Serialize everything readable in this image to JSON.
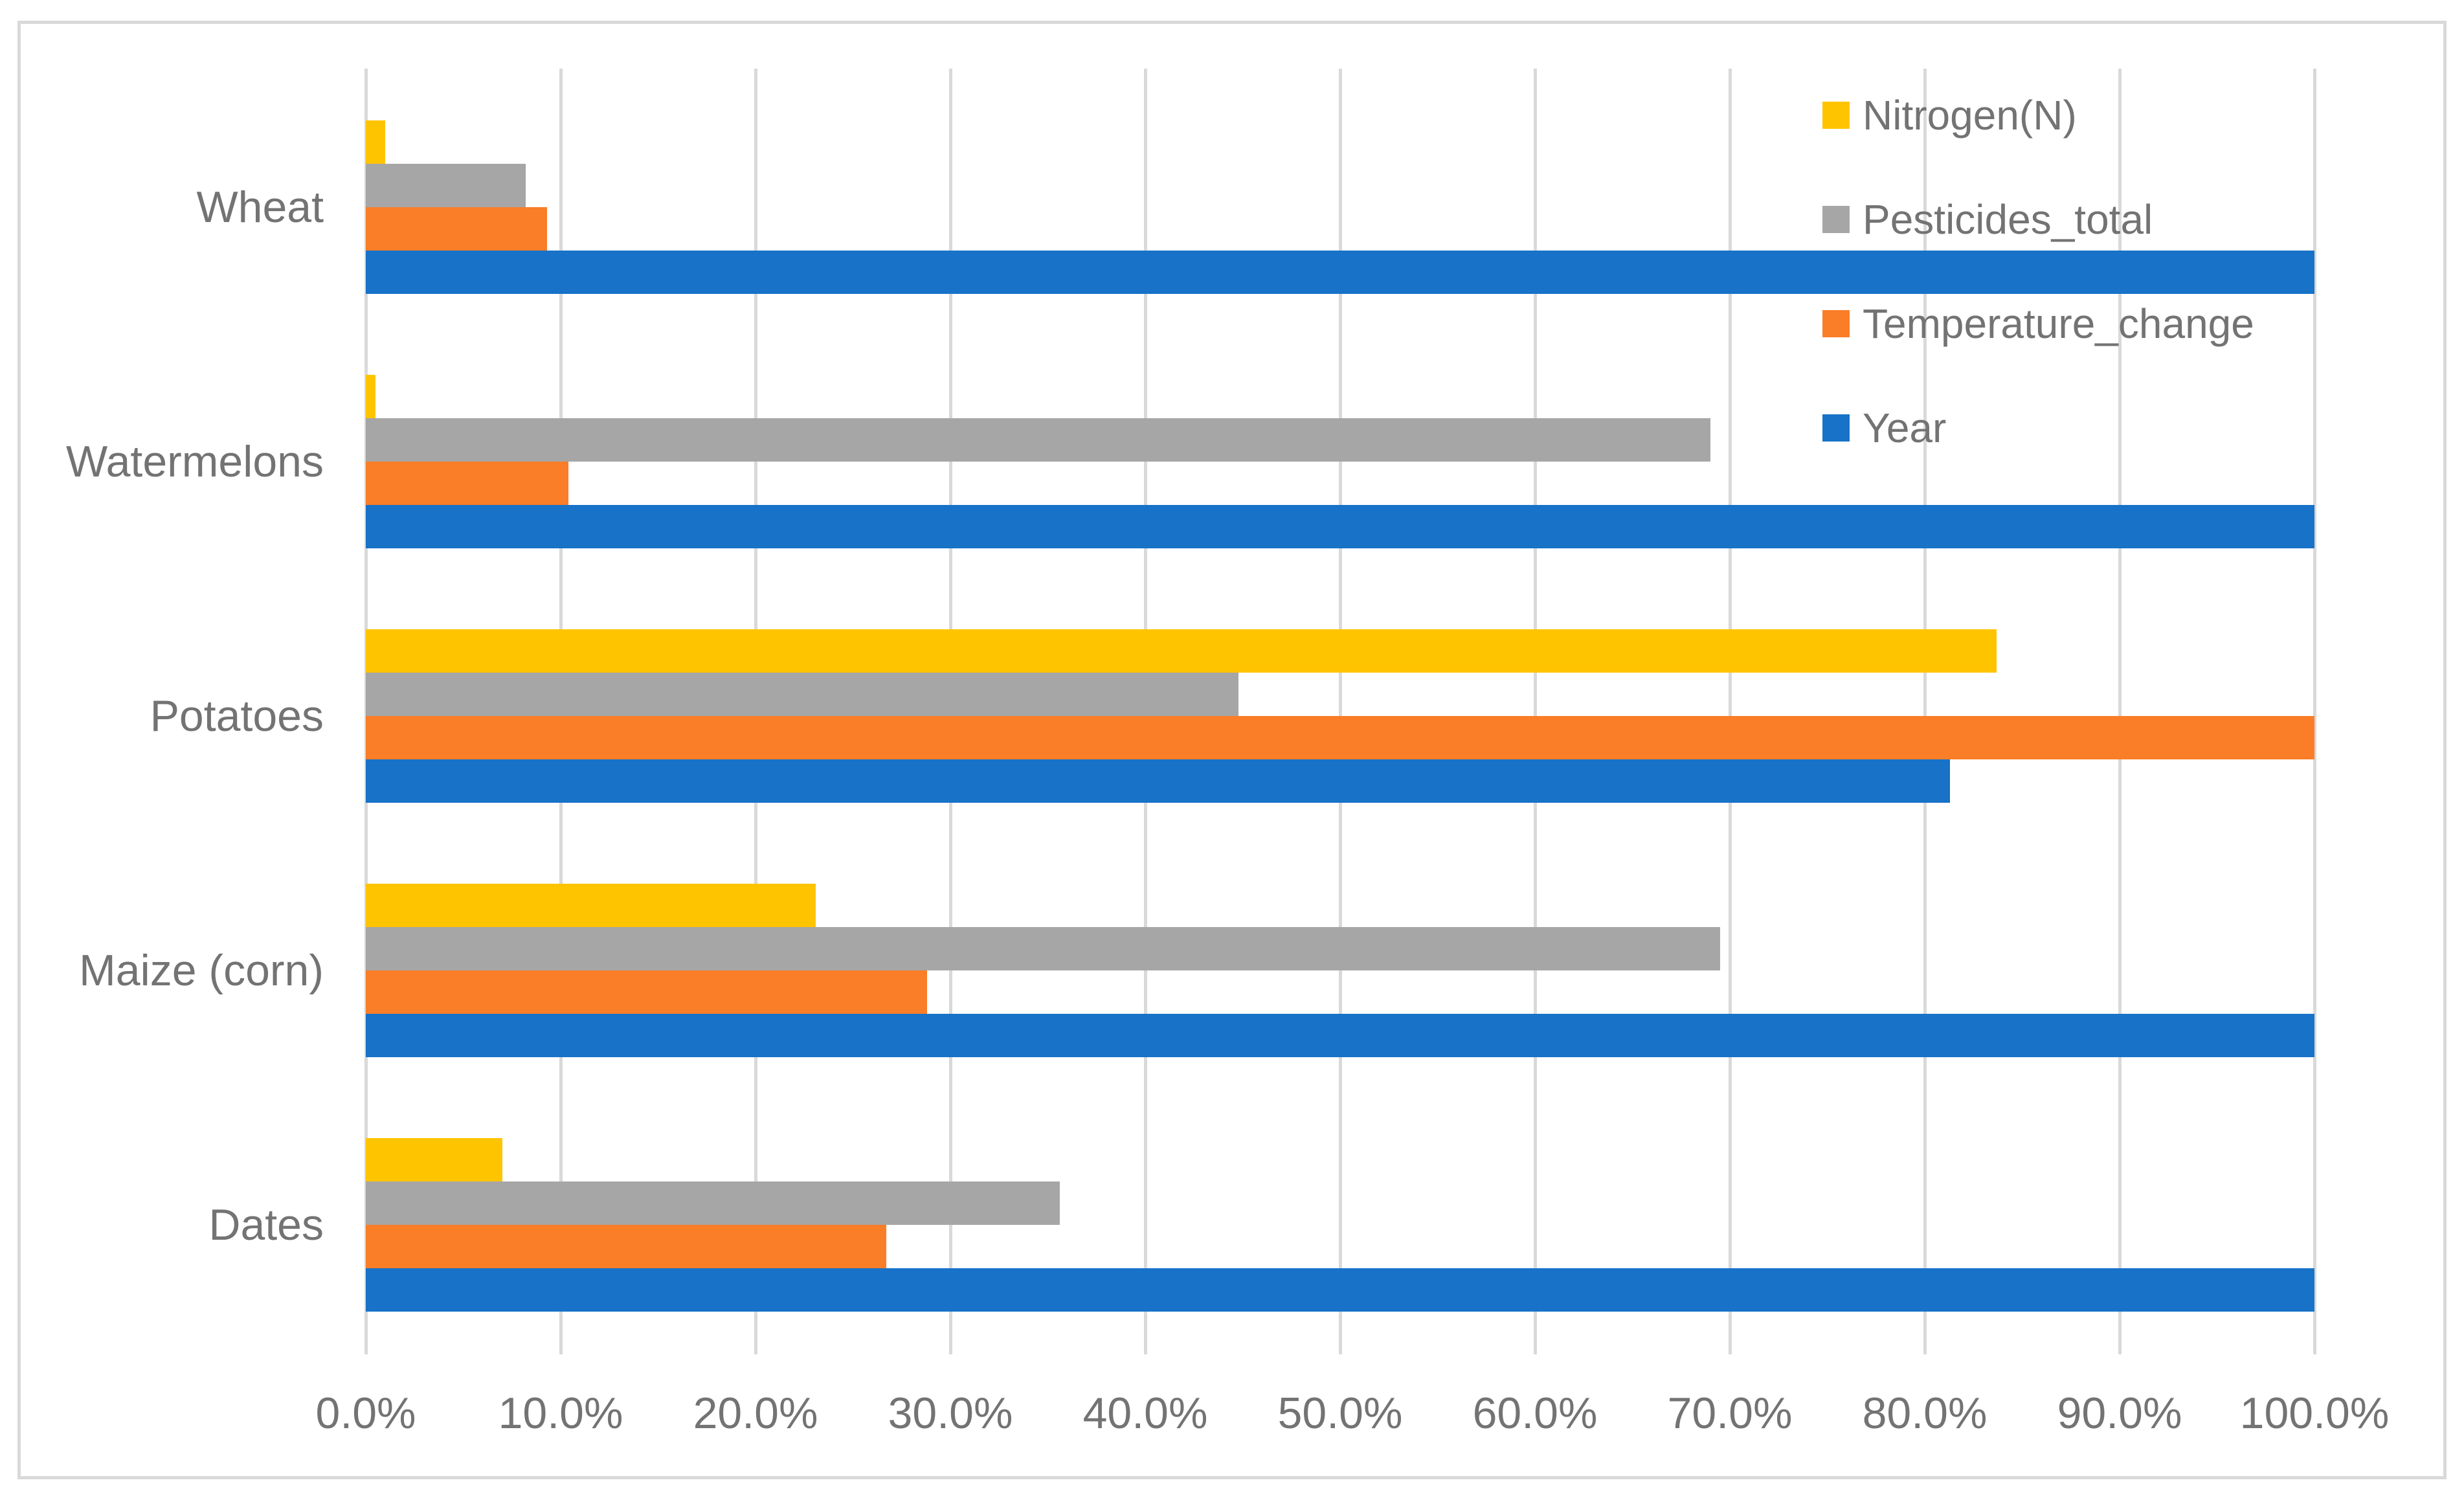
{
  "chart_data": {
    "type": "bar",
    "orientation": "horizontal",
    "title": "",
    "xlabel": "",
    "ylabel": "",
    "categories": [
      "Wheat",
      "Watermelons",
      "Potatoes",
      "Maize (corn)",
      "Dates"
    ],
    "series": [
      {
        "name": "Nitrogen(N)",
        "color": "#FFC400",
        "values": [
          1.0,
          0.5,
          83.7,
          23.1,
          7.0
        ]
      },
      {
        "name": "Pesticides_total",
        "color": "#A6A6A6",
        "values": [
          8.2,
          69.0,
          44.8,
          69.5,
          35.6
        ]
      },
      {
        "name": "Temperature_change",
        "color": "#FA7D27",
        "values": [
          9.3,
          10.4,
          100.0,
          28.8,
          26.7
        ]
      },
      {
        "name": "Year",
        "color": "#1772C8",
        "values": [
          100.0,
          100.0,
          81.3,
          100.0,
          100.0
        ]
      }
    ],
    "x_axis": {
      "min": 0,
      "max": 100,
      "tick_step": 10,
      "tick_labels": [
        "0.0%",
        "10.0%",
        "20.0%",
        "30.0%",
        "40.0%",
        "50.0%",
        "60.0%",
        "70.0%",
        "80.0%",
        "90.0%",
        "100.0%"
      ]
    },
    "grid": "vertical",
    "legend": {
      "position": "top-right-inside",
      "items": [
        "Nitrogen(N)",
        "Pesticides_total",
        "Temperature_change",
        "Year"
      ]
    }
  },
  "theme": {
    "background": "#FFFFFF",
    "border_color": "#D9D9D9",
    "gridline_color": "#D9D9D9",
    "text_color": "#737373"
  }
}
